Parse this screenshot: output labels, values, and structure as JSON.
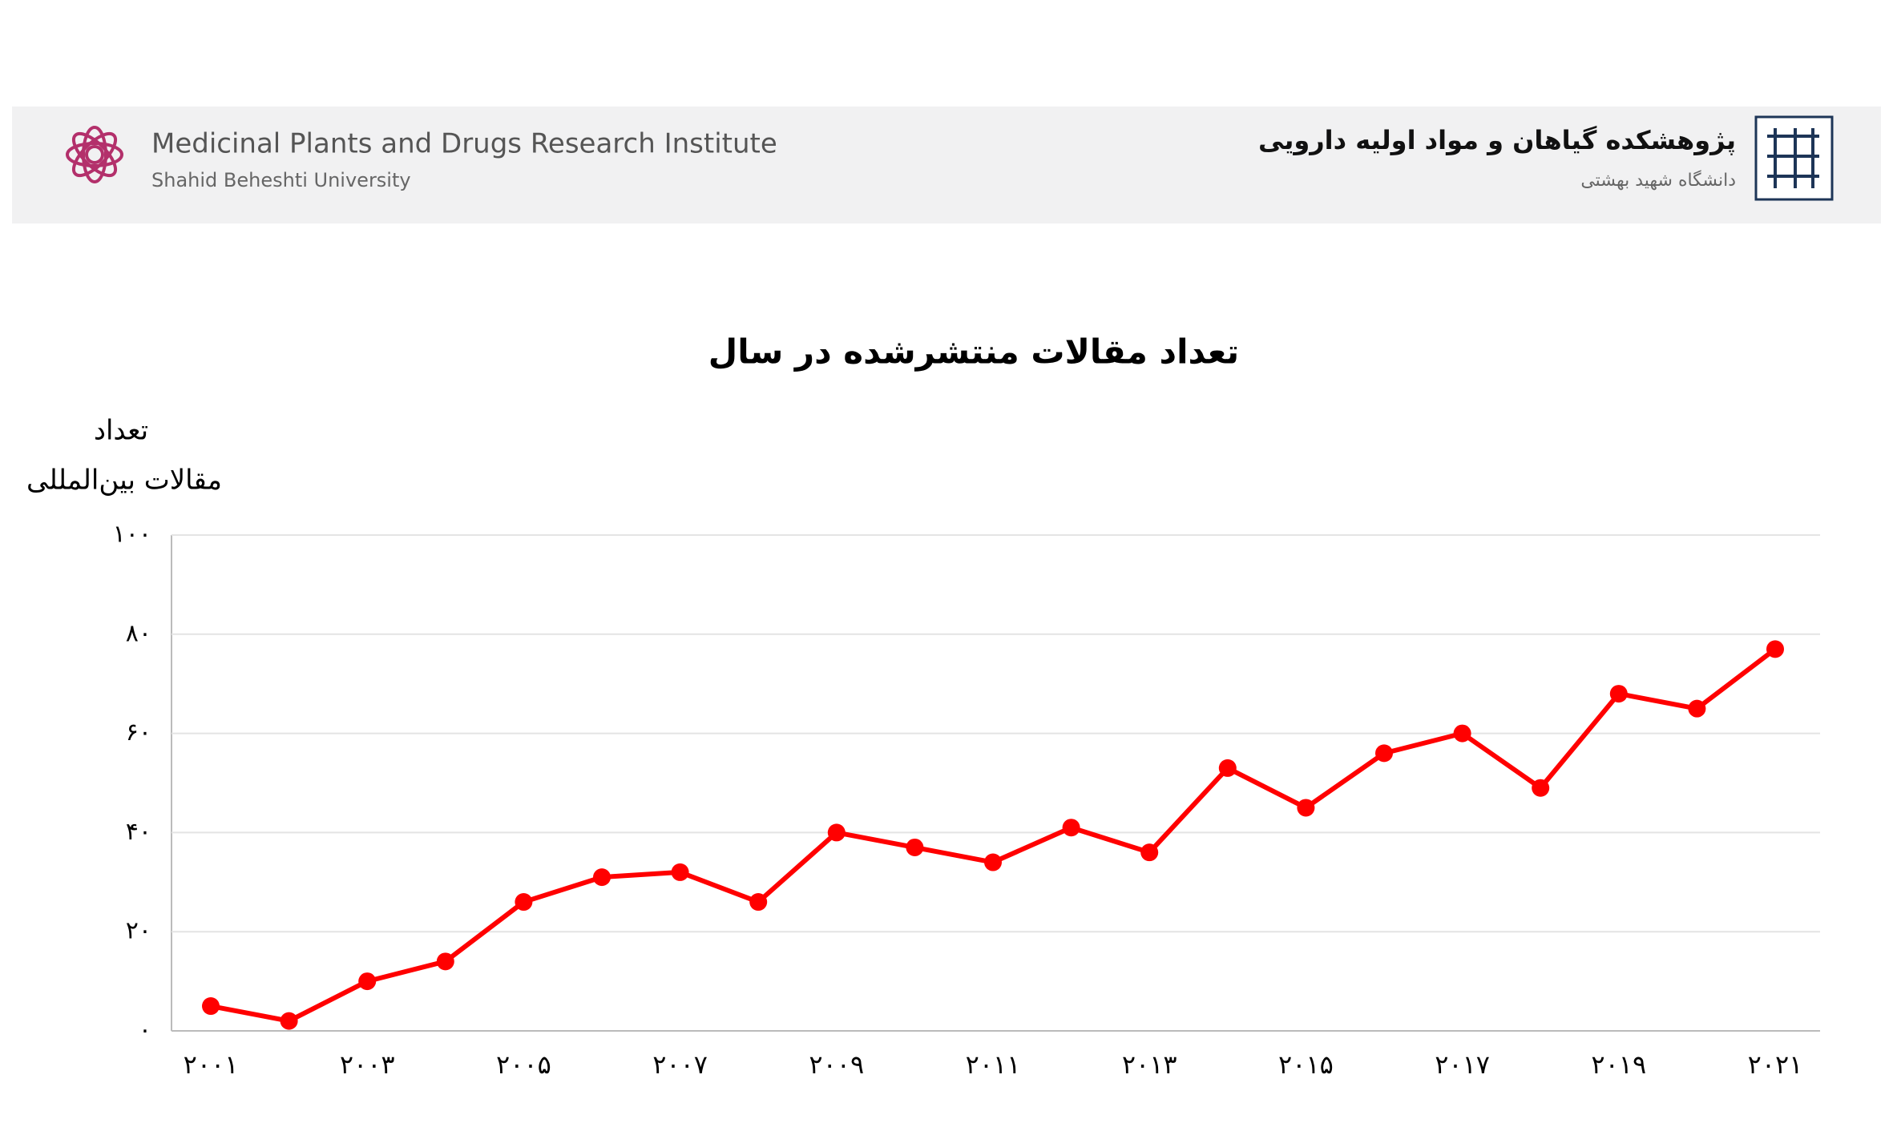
{
  "header": {
    "title_en": "Medicinal Plants and Drugs Research Institute",
    "subtitle_en": "Shahid Beheshti University",
    "title_fa": "پژوهشکده گیاهان و مواد اولیه دارویی",
    "subtitle_fa": "دانشگاه شهید بهشتی"
  },
  "chart_data": {
    "type": "line",
    "title": "تعداد مقالات منتشرشده در سال",
    "y_label": [
      "تعداد",
      "مقالات بین‌المللی"
    ],
    "categories": [
      "۲۰۰۱",
      null,
      "۲۰۰۳",
      null,
      "۲۰۰۵",
      null,
      "۲۰۰۷",
      null,
      "۲۰۰۹",
      null,
      "۲۰۱۱",
      null,
      "۲۰۱۳",
      null,
      "۲۰۱۵",
      null,
      "۲۰۱۷",
      null,
      "۲۰۱۹",
      null,
      "۲۰۲۱"
    ],
    "values": [
      5,
      2,
      10,
      14,
      26,
      31,
      32,
      26,
      40,
      37,
      34,
      41,
      36,
      53,
      45,
      56,
      60,
      49,
      68,
      65,
      77
    ],
    "color": "#ff0000",
    "ylim": [
      0,
      100
    ],
    "yticks": [
      {
        "value": 0,
        "label": "۰"
      },
      {
        "value": 20,
        "label": "۲۰"
      },
      {
        "value": 40,
        "label": "۴۰"
      },
      {
        "value": 60,
        "label": "۶۰"
      },
      {
        "value": 80,
        "label": "۸۰"
      },
      {
        "value": 100,
        "label": "۱۰۰"
      }
    ],
    "grid": true
  }
}
